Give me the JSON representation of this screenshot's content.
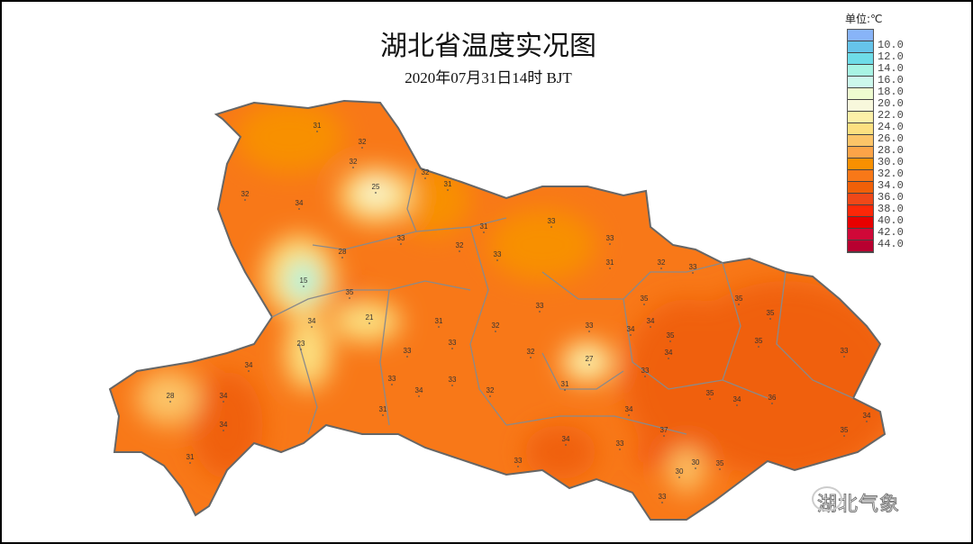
{
  "title": "湖北省温度实况图",
  "subtitle": "2020年07月31日14时    BJT",
  "legend": {
    "unit": "单位:℃",
    "labels": [
      "10.0",
      "12.0",
      "14.0",
      "16.0",
      "18.0",
      "20.0",
      "22.0",
      "24.0",
      "26.0",
      "28.0",
      "30.0",
      "32.0",
      "34.0",
      "36.0",
      "38.0",
      "40.0",
      "42.0",
      "44.0"
    ],
    "colors": [
      "#88b4f8",
      "#66c4ea",
      "#6edce8",
      "#a8f4e4",
      "#ccf8ec",
      "#eefcd0",
      "#f8f8dc",
      "#fcf0a8",
      "#fce080",
      "#fcc468",
      "#fca448",
      "#f89000",
      "#f87818",
      "#f06008",
      "#f04818",
      "#fc2808",
      "#e80000",
      "#d00838",
      "#b80030"
    ]
  },
  "stations": [
    31,
    32,
    32,
    25,
    31,
    32,
    34,
    32,
    31,
    33,
    28,
    33,
    32,
    33,
    33,
    31,
    32,
    33,
    15,
    35,
    34,
    21,
    31,
    23,
    34,
    32,
    33,
    32,
    33,
    28,
    34,
    34,
    31,
    33,
    31,
    33,
    34,
    33,
    32,
    27,
    31,
    34,
    33,
    34,
    33,
    34,
    35,
    34,
    35,
    35,
    35,
    36,
    35,
    35,
    34,
    33,
    35,
    37,
    30,
    30,
    33,
    35,
    34,
    34,
    33,
    33
  ],
  "watermark": "湖北气象"
}
